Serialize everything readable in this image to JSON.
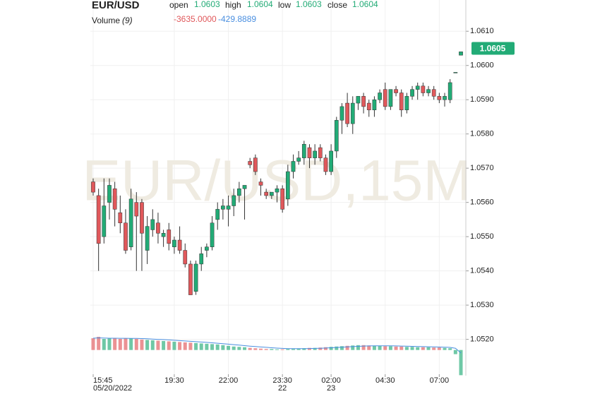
{
  "chart_data": {
    "type": "candlestick",
    "title": "EUR/USD",
    "watermark": "EUR/USD,15M",
    "ohlc_labels": [
      "open",
      "high",
      "low",
      "close"
    ],
    "categories": [
      "15:45",
      null,
      null,
      null,
      null,
      null,
      null,
      null,
      null,
      null,
      null,
      null,
      null,
      null,
      null,
      "19:30",
      null,
      null,
      null,
      null,
      null,
      null,
      null,
      null,
      null,
      "22:00",
      null,
      null,
      null,
      null,
      null,
      null,
      null,
      null,
      null,
      "23:30",
      null,
      null,
      null,
      null,
      null,
      null,
      null,
      null,
      "02:00",
      null,
      null,
      null,
      null,
      null,
      null,
      null,
      null,
      null,
      "04:30",
      null,
      null,
      null,
      null,
      null,
      null,
      null,
      null,
      null,
      "07:00",
      null,
      null,
      null,
      null
    ],
    "category_sublabels": [
      "05/20/2022",
      null,
      null,
      null,
      null,
      null,
      null,
      null,
      null,
      null,
      null,
      null,
      null,
      null,
      null,
      null,
      null,
      null,
      null,
      null,
      null,
      null,
      null,
      null,
      null,
      null,
      null,
      null,
      null,
      null,
      null,
      null,
      null,
      null,
      null,
      "22",
      null,
      null,
      null,
      null,
      null,
      null,
      null,
      null,
      "23",
      null,
      null,
      null,
      null,
      null,
      null,
      null,
      null,
      null,
      null,
      null,
      null,
      null,
      null,
      null,
      null,
      null,
      null,
      null,
      null,
      null,
      null,
      null,
      null
    ],
    "open": [
      1.0566,
      1.0562,
      1.055,
      1.056,
      1.0564,
      1.0557,
      1.0554,
      1.0547,
      1.056,
      1.056,
      1.0546,
      1.0552,
      1.0554,
      1.055,
      1.0552,
      1.0547,
      1.0549,
      1.0546,
      1.0542,
      1.0534,
      1.0542,
      1.0546,
      1.0547,
      1.0555,
      1.0558,
      1.0558,
      1.0559,
      1.0562,
      1.0564,
      1.0572,
      1.0573,
      1.0566,
      1.0563,
      1.0562,
      1.0563,
      1.0564,
      1.0561,
      1.0569,
      1.0572,
      1.0573,
      1.0576,
      1.0573,
      1.0576,
      1.0573,
      1.0569,
      1.0575,
      1.0584,
      1.0589,
      1.0583,
      1.0589,
      1.0591,
      1.0589,
      1.0587,
      1.059,
      1.0593,
      1.0588,
      1.0593,
      1.0592,
      1.0587,
      1.0591,
      1.0593,
      1.0594,
      1.0592,
      1.0593,
      1.0591,
      1.059,
      1.059,
      1.0598,
      1.0603
    ],
    "high": [
      1.0567,
      1.0564,
      1.0567,
      1.0567,
      1.0566,
      1.0562,
      1.0558,
      1.0564,
      1.0563,
      1.0561,
      1.0556,
      1.0558,
      1.0557,
      1.0552,
      1.0554,
      1.055,
      1.0553,
      1.0548,
      1.0543,
      1.0543,
      1.0547,
      1.0548,
      1.0556,
      1.056,
      1.0561,
      1.0562,
      1.0564,
      1.0566,
      1.0565,
      1.0573,
      1.0574,
      1.0567,
      1.0564,
      1.0563,
      1.0565,
      1.0565,
      1.0571,
      1.0574,
      1.0575,
      1.0578,
      1.0577,
      1.0577,
      1.0577,
      1.0574,
      1.0577,
      1.0585,
      1.0589,
      1.0592,
      1.0591,
      1.0591,
      1.0592,
      1.059,
      1.0591,
      1.0593,
      1.0595,
      1.0593,
      1.0594,
      1.0593,
      1.0592,
      1.0594,
      1.0595,
      1.0595,
      1.0594,
      1.0594,
      1.0592,
      1.0592,
      1.0596,
      1.0598,
      1.0604
    ],
    "low": [
      1.0562,
      1.054,
      1.0548,
      1.0555,
      1.0553,
      1.0551,
      1.0545,
      1.0546,
      1.054,
      1.054,
      1.0542,
      1.055,
      1.0548,
      1.0547,
      1.0546,
      1.0545,
      1.0545,
      1.0541,
      1.0533,
      1.0533,
      1.054,
      1.0544,
      1.0546,
      1.0552,
      1.0555,
      1.0553,
      1.0556,
      1.056,
      1.0555,
      1.057,
      1.0568,
      1.0562,
      1.0561,
      1.0561,
      1.056,
      1.0557,
      1.0559,
      1.0567,
      1.0571,
      1.0571,
      1.057,
      1.0571,
      1.0572,
      1.0568,
      1.0568,
      1.0573,
      1.058,
      1.0582,
      1.058,
      1.0587,
      1.0586,
      1.0585,
      1.0585,
      1.0589,
      1.0587,
      1.0587,
      1.0591,
      1.0585,
      1.0586,
      1.059,
      1.059,
      1.0591,
      1.0591,
      1.059,
      1.0589,
      1.0588,
      1.0589,
      1.0598,
      1.0603
    ],
    "close": [
      1.0563,
      1.0548,
      1.0559,
      1.0565,
      1.0558,
      1.0554,
      1.0546,
      1.0561,
      1.0556,
      1.0551,
      1.0553,
      1.0555,
      1.0551,
      1.0551,
      1.0548,
      1.0549,
      1.0546,
      1.0542,
      1.0533,
      1.0542,
      1.0545,
      1.0547,
      1.0554,
      1.0558,
      1.0559,
      1.0559,
      1.0562,
      1.0564,
      1.0565,
      1.0571,
      1.0569,
      1.0565,
      1.0562,
      1.0563,
      1.0564,
      1.0558,
      1.0569,
      1.0572,
      1.0573,
      1.0577,
      1.0573,
      1.0575,
      1.0573,
      1.0569,
      1.0575,
      1.0584,
      1.0588,
      1.0583,
      1.0589,
      1.0591,
      1.0588,
      1.0587,
      1.059,
      1.0592,
      1.0588,
      1.0593,
      1.0592,
      1.0587,
      1.0591,
      1.0593,
      1.0594,
      1.0592,
      1.0593,
      1.0591,
      1.059,
      1.0591,
      1.0595,
      1.0598,
      1.0604
    ],
    "up_color": "#22ab76",
    "down_color": "#e0585b",
    "ylim": [
      1.0516,
      1.0615
    ],
    "yticks": [
      {
        "value": 1.052,
        "label": "1.0520"
      },
      {
        "value": 1.053,
        "label": "1.0530"
      },
      {
        "value": 1.054,
        "label": "1.0540"
      },
      {
        "value": 1.055,
        "label": "1.0550"
      },
      {
        "value": 1.056,
        "label": "1.0560"
      },
      {
        "value": 1.057,
        "label": "1.0570"
      },
      {
        "value": 1.058,
        "label": "1.0580"
      },
      {
        "value": 1.059,
        "label": "1.0590"
      },
      {
        "value": 1.06,
        "label": "1.0600"
      },
      {
        "value": 1.061,
        "label": "1.0610"
      }
    ],
    "grid": true,
    "last_price": 1.0605,
    "volume": {
      "name": "Volume",
      "period_label": "(9)",
      "ylim": [
        -3700,
        1800
      ],
      "values": [
        1700,
        1900,
        1600,
        1650,
        1700,
        1600,
        1700,
        1650,
        1600,
        1500,
        1450,
        1400,
        1350,
        1300,
        1250,
        1200,
        1150,
        1100,
        1050,
        1000,
        950,
        900,
        850,
        800,
        700,
        600,
        500,
        450,
        400,
        300,
        250,
        200,
        150,
        150,
        100,
        100,
        150,
        150,
        200,
        250,
        300,
        300,
        350,
        400,
        450,
        500,
        550,
        600,
        650,
        700,
        700,
        650,
        600,
        600,
        550,
        550,
        500,
        500,
        450,
        450,
        400,
        400,
        400,
        350,
        350,
        300,
        250,
        -600,
        -3635
      ],
      "value_labels": [
        null,
        null,
        null,
        null,
        null,
        null,
        null,
        null,
        null,
        null,
        null,
        null,
        null,
        null,
        null,
        null,
        null,
        null,
        null,
        null,
        null,
        null,
        null,
        null,
        null,
        null,
        null,
        null,
        null,
        null,
        null,
        null,
        null,
        null,
        null,
        null,
        null,
        null,
        null,
        null,
        null,
        null,
        null,
        null,
        null,
        null,
        null,
        null,
        null,
        null,
        null,
        null,
        null,
        null,
        null,
        null,
        null,
        null,
        null,
        null,
        null,
        null,
        null,
        null,
        null,
        null,
        null,
        null,
        "-3635.0000"
      ],
      "ma_values": [
        1700,
        1750,
        1720,
        1700,
        1700,
        1690,
        1690,
        1680,
        1670,
        1650,
        1620,
        1580,
        1540,
        1500,
        1450,
        1400,
        1350,
        1300,
        1250,
        1200,
        1150,
        1100,
        1040,
        980,
        910,
        840,
        770,
        700,
        630,
        560,
        500,
        440,
        380,
        320,
        270,
        230,
        200,
        190,
        190,
        200,
        210,
        230,
        250,
        280,
        320,
        360,
        400,
        450,
        490,
        530,
        570,
        590,
        610,
        610,
        610,
        600,
        590,
        570,
        550,
        530,
        510,
        490,
        470,
        450,
        430,
        400,
        370,
        250,
        -429.8889
      ],
      "ma_color": "#4a8fe0"
    }
  }
}
